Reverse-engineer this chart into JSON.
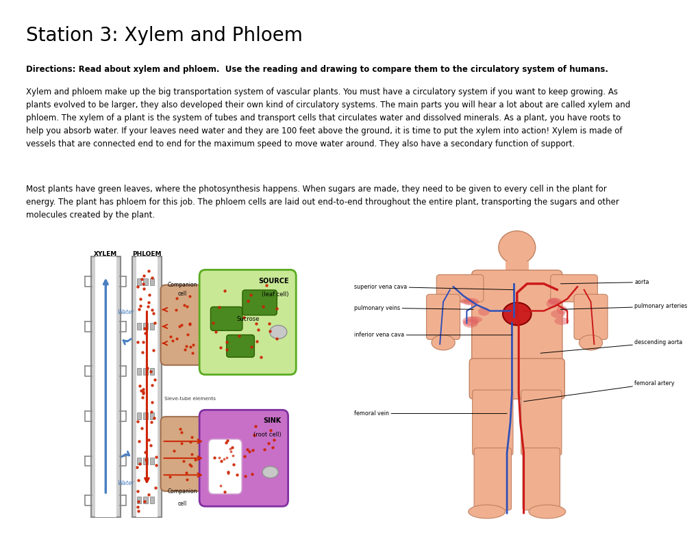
{
  "title": "Station 3: Xylem and Phloem",
  "title_fontsize": 20,
  "directions_bold": "Directions: Read about xylem and phloem.  Use the reading and drawing to compare them to the circulatory system of humans.",
  "directions_fontsize": 8.5,
  "paragraph1": "Xylem and phloem make up the big transportation system of vascular plants. You must have a circulatory system if you want to keep growing. As\nplants evolved to be larger, they also developed their own kind of circulatory systems. The main parts you will hear a lot about are called xylem and\nphloem. The xylem of a plant is the system of tubes and transport cells that circulates water and dissolved minerals. As a plant, you have roots to\nhelp you absorb water. If your leaves need water and they are 100 feet above the ground, it is time to put the xylem into action! Xylem is made of\nvessels that are connected end to end for the maximum speed to move water around. They also have a secondary function of support.",
  "para1_fontsize": 8.5,
  "paragraph2": "Most plants have green leaves, where the photosynthesis happens. When sugars are made, they need to be given to every cell in the plant for\nenergy. The plant has phloem for this job. The phloem cells are laid out end-to-end throughout the entire plant, transporting the sugars and other\nmolecules created by the plant.",
  "para2_fontsize": 8.5,
  "background_color": "#ffffff",
  "text_color": "#000000"
}
